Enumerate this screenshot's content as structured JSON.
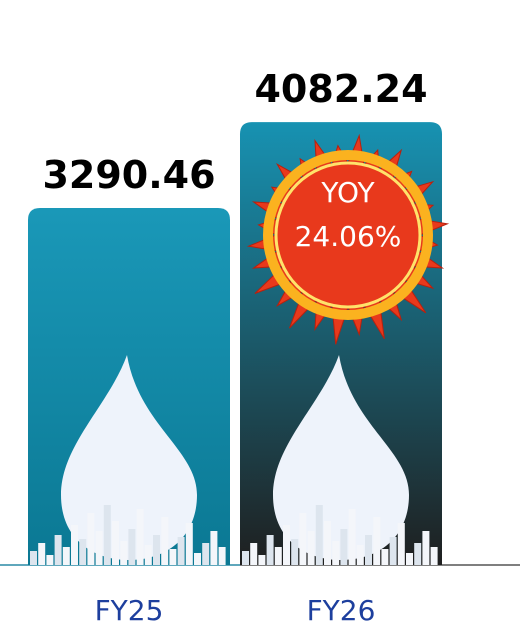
{
  "chart_data": {
    "type": "bar",
    "categories": [
      "FY25",
      "FY26"
    ],
    "values": [
      3290.46,
      4082.24
    ],
    "colors": [
      [
        "#1a98b8",
        "#0b7893"
      ],
      [
        "#1792b2",
        "#1f1f1f"
      ]
    ],
    "ylim": [
      0,
      4600
    ],
    "annotations": [
      "YOY",
      "24.06%"
    ]
  }
}
